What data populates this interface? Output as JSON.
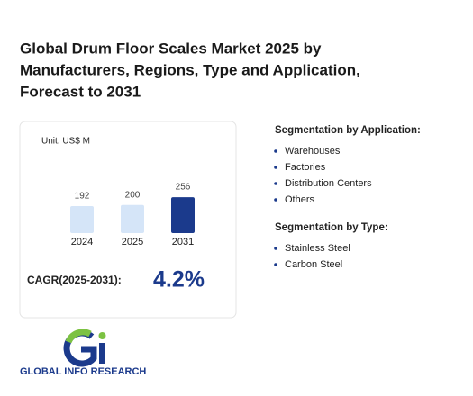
{
  "title_lines": [
    "Global Drum Floor Scales Market 2025 by",
    "Manufacturers, Regions, Type and Application,",
    "Forecast to 2031"
  ],
  "chart_data": {
    "type": "bar",
    "unit": "Unit: US$ M",
    "categories": [
      "2024",
      "2025",
      "2031"
    ],
    "values": [
      192,
      200,
      256
    ],
    "colors": [
      "#d5e5f8",
      "#d5e5f8",
      "#1b3a8c"
    ]
  },
  "cagr": {
    "label": "CAGR(2025-2031):",
    "value": "4.2%"
  },
  "segments": [
    {
      "heading": "Segmentation by Application:",
      "items": [
        "Warehouses",
        "Factories",
        "Distribution Centers",
        "Others"
      ]
    },
    {
      "heading": "Segmentation by Type:",
      "items": [
        "Stainless Steel",
        "Carbon Steel"
      ]
    }
  ],
  "logo": {
    "text": "GLOBAL INFO RESEARCH"
  }
}
